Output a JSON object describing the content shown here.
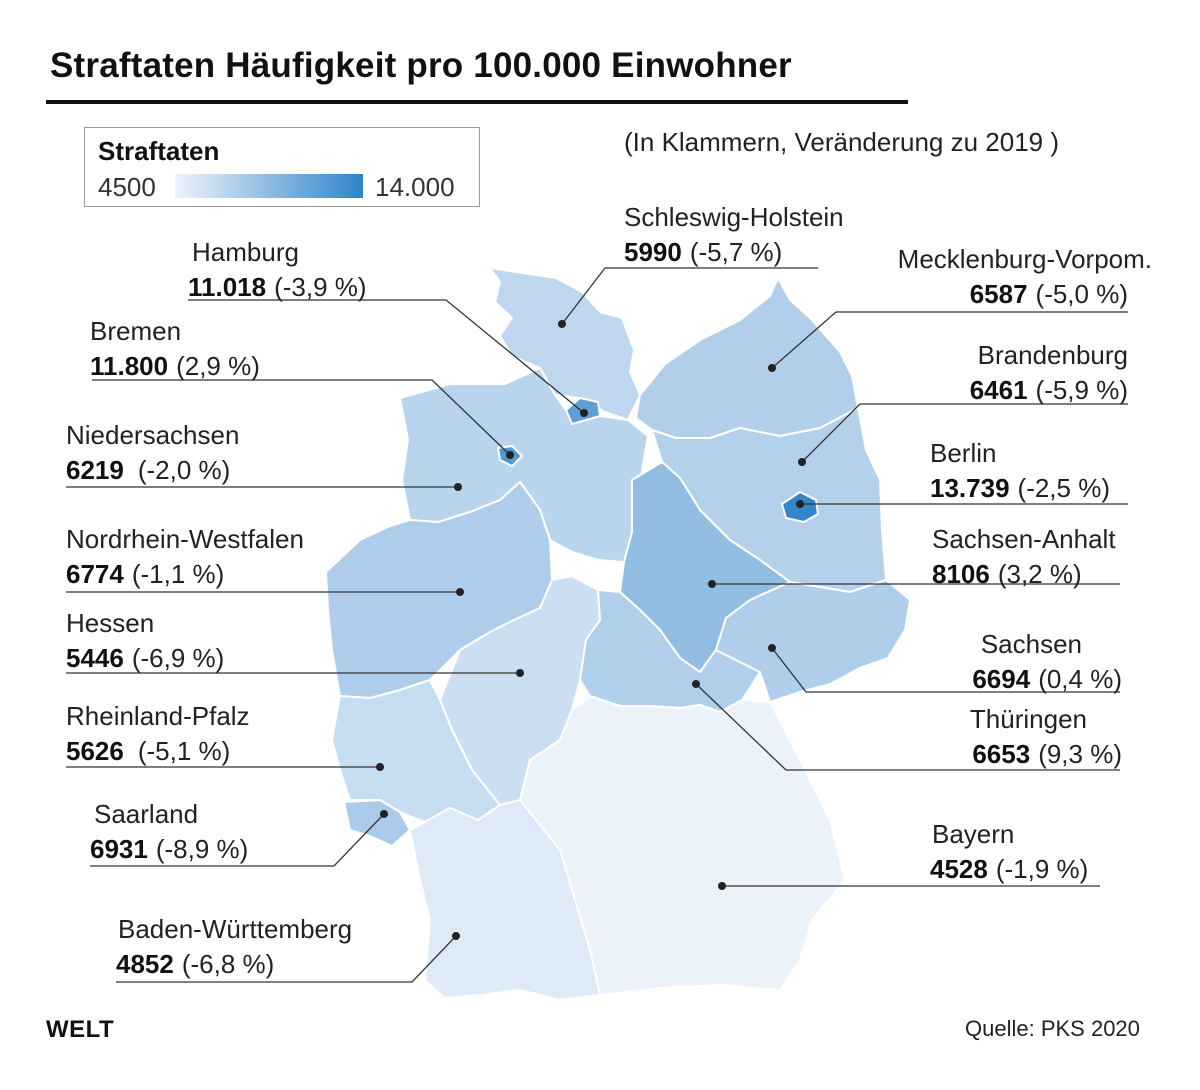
{
  "title": "Straftaten Häufigkeit pro 100.000 Einwohner",
  "note": "(In Klammern, Veränderung zu 2019 )",
  "legend": {
    "title": "Straftaten",
    "min": "4500",
    "max": "14.000"
  },
  "colors": {
    "low": "#eef3fb",
    "high": "#2f84c9",
    "border": "#ffffff",
    "leader": "#333333"
  },
  "states": [
    {
      "id": "sh",
      "name": "Schleswig-Holstein",
      "value": "5990",
      "change": "(-5,7 %)"
    },
    {
      "id": "hh",
      "name": "Hamburg",
      "value": "11.018",
      "change": "(-3,9 %)"
    },
    {
      "id": "mv",
      "name": "Mecklenburg-Vorpom.",
      "value": "6587",
      "change": "(-5,0 %)"
    },
    {
      "id": "hb",
      "name": "Bremen",
      "value": "11.800",
      "change": "(2,9 %)"
    },
    {
      "id": "bb",
      "name": "Brandenburg",
      "value": "6461",
      "change": "(-5,9 %)"
    },
    {
      "id": "ni",
      "name": "Niedersachsen",
      "value": "6219",
      "change": "(-2,0 %)"
    },
    {
      "id": "be",
      "name": "Berlin",
      "value": "13.739",
      "change": "(-2,5 %)"
    },
    {
      "id": "nw",
      "name": "Nordrhein-Westfalen",
      "value": "6774",
      "change": "(-1,1 %)"
    },
    {
      "id": "st",
      "name": "Sachsen-Anhalt",
      "value": "8106",
      "change": "(3,2 %)"
    },
    {
      "id": "he",
      "name": "Hessen",
      "value": "5446",
      "change": "(-6,9 %)"
    },
    {
      "id": "sn",
      "name": "Sachsen",
      "value": "6694",
      "change": "(0,4 %)"
    },
    {
      "id": "rp",
      "name": "Rheinland-Pfalz",
      "value": "5626",
      "change": "(-5,1 %)"
    },
    {
      "id": "th",
      "name": "Thüringen",
      "value": "6653",
      "change": "(9,3 %)"
    },
    {
      "id": "sl",
      "name": "Saarland",
      "value": "6931",
      "change": "(-8,9 %)"
    },
    {
      "id": "by",
      "name": "Bayern",
      "value": "4528",
      "change": "(-1,9 %)"
    },
    {
      "id": "bw",
      "name": "Baden-Württemberg",
      "value": "4852",
      "change": "(-6,8 %)"
    }
  ],
  "brand": "WELT",
  "source": "Quelle: PKS 2020"
}
